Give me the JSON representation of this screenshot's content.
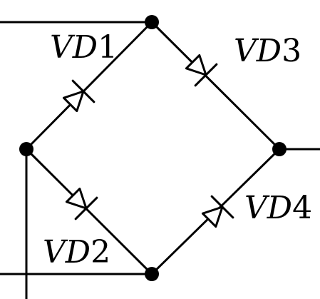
{
  "diagram": {
    "type": "bridge rectifier",
    "diodes": [
      {
        "letters": "VD",
        "digit": "1"
      },
      {
        "letters": "VD",
        "digit": "3"
      },
      {
        "letters": "VD",
        "digit": "2"
      },
      {
        "letters": "VD",
        "digit": "4"
      }
    ],
    "colors": {
      "line": "#000000",
      "background": "#ffffff"
    }
  }
}
